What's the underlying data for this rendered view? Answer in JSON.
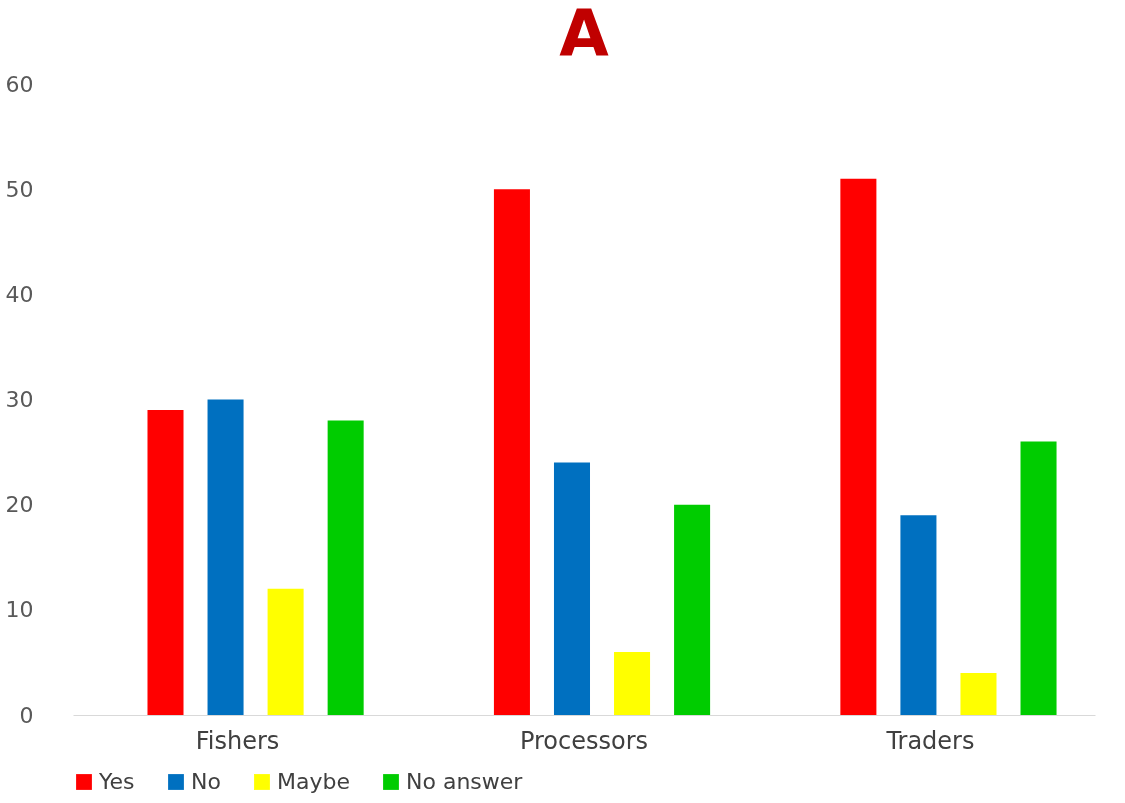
{
  "chart_data": {
    "type": "bar",
    "title": "A",
    "categories": [
      "Fishers",
      "Processors",
      "Traders"
    ],
    "series": [
      {
        "name": "Yes",
        "color": "#ff0000",
        "values": [
          29,
          50,
          51
        ]
      },
      {
        "name": "No",
        "color": "#0070c0",
        "values": [
          30,
          24,
          19
        ]
      },
      {
        "name": "Maybe",
        "color": "#ffff00",
        "values": [
          12,
          6,
          4
        ]
      },
      {
        "name": "No answer",
        "color": "#00cc00",
        "values": [
          28,
          20,
          26
        ]
      }
    ],
    "ylim": [
      0,
      60
    ],
    "yticks": [
      0,
      10,
      20,
      30,
      40,
      50,
      60
    ],
    "grid": false,
    "legend": "bottom"
  }
}
